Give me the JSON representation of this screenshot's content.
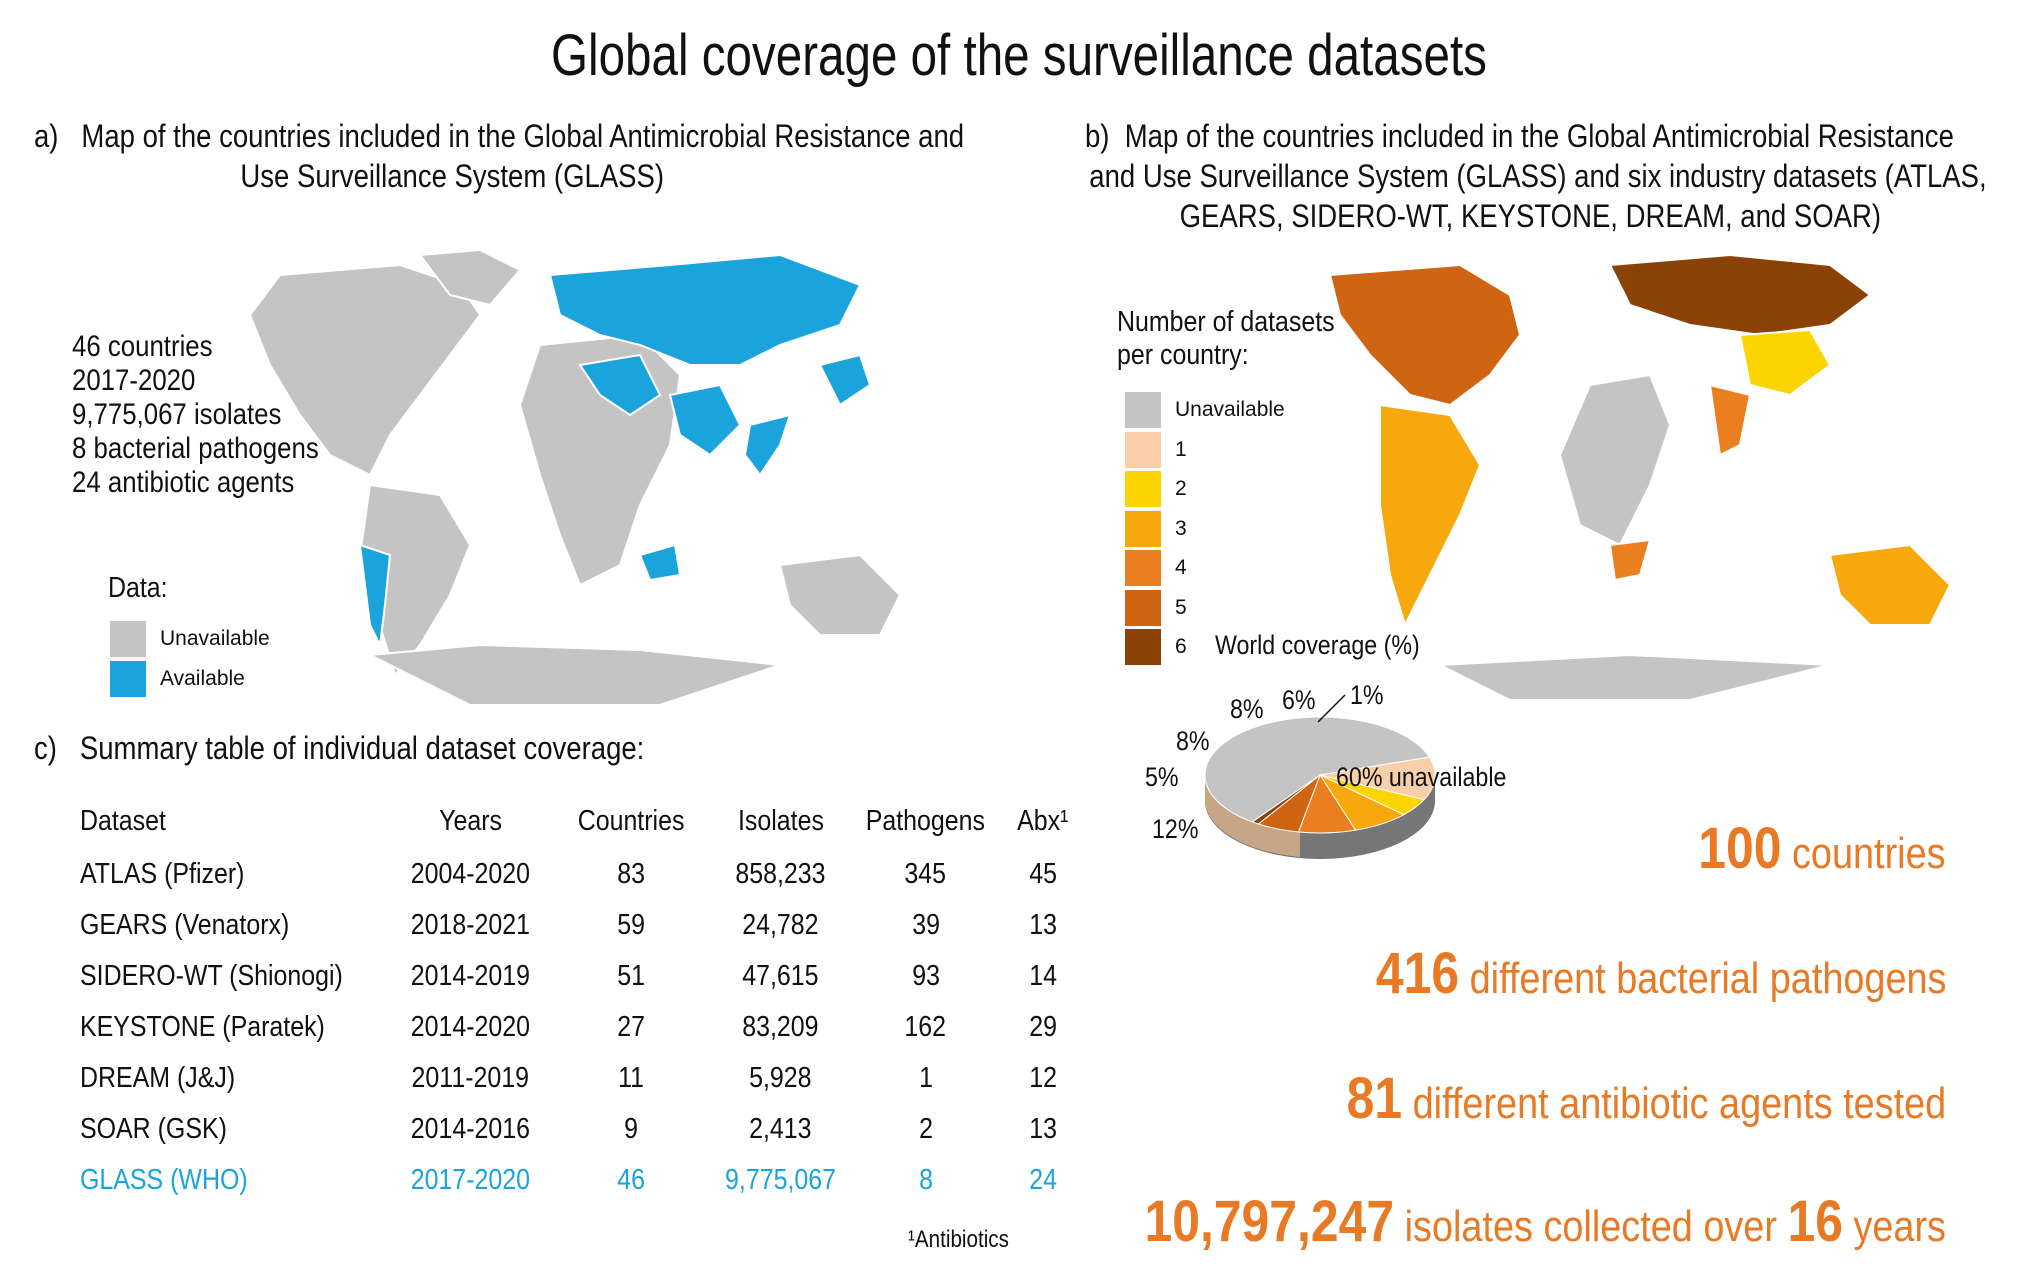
{
  "title": "Global coverage of the surveillance datasets",
  "panel_a": {
    "label": "a)",
    "title_line1": "Map of the countries included in the Global Antimicrobial Resistance and",
    "title_line2": "Use Surveillance System (GLASS)",
    "stats": [
      "46 countries",
      "2017-2020",
      "9,775,067 isolates",
      "8 bacterial pathogens",
      "24 antibiotic agents"
    ],
    "legend_title": "Data:",
    "legend": [
      {
        "label": "Unavailable",
        "color": "#c4c4c4"
      },
      {
        "label": "Available",
        "color": "#1ba3dc"
      }
    ]
  },
  "panel_b": {
    "label": "b)",
    "title_line1": "Map of the countries included in the Global Antimicrobial Resistance",
    "title_line2": "and Use Surveillance System (GLASS) and six industry datasets (ATLAS,",
    "title_line3": "GEARS, SIDERO-WT, KEYSTONE, DREAM, and SOAR)",
    "legend_title_line1": "Number of datasets",
    "legend_title_line2": "per country:",
    "legend": [
      {
        "label": "Unavailable",
        "color": "#c4c4c4"
      },
      {
        "label": "1",
        "color": "#f8cfa9"
      },
      {
        "label": "2",
        "color": "#fcd400"
      },
      {
        "label": "3",
        "color": "#f6a80d"
      },
      {
        "label": "4",
        "color": "#eb7e1e"
      },
      {
        "label": "5",
        "color": "#cf6412"
      },
      {
        "label": "6",
        "color": "#8a4206"
      }
    ],
    "pie_title": "World coverage (%)"
  },
  "panel_c": {
    "label": "c)",
    "title": "Summary table of individual dataset coverage:",
    "headers": [
      "Dataset",
      "Years",
      "Countries",
      "Isolates",
      "Pathogens",
      "Abx¹"
    ],
    "rows": [
      [
        "ATLAS (Pfizer)",
        "2004-2020",
        "83",
        "858,233",
        "345",
        "45"
      ],
      [
        "GEARS (Venatorx)",
        "2018-2021",
        "59",
        "24,782",
        "39",
        "13"
      ],
      [
        "SIDERO-WT (Shionogi)",
        "2014-2019",
        "51",
        "47,615",
        "93",
        "14"
      ],
      [
        "KEYSTONE (Paratek)",
        "2014-2020",
        "27",
        "83,209",
        "162",
        "29"
      ],
      [
        "DREAM (J&J)",
        "2011-2019",
        "11",
        "5,928",
        "1",
        "12"
      ],
      [
        "SOAR (GSK)",
        "2014-2016",
        "9",
        "2,413",
        "2",
        "13"
      ],
      [
        "GLASS (WHO)",
        "2017-2020",
        "46",
        "9,775,067",
        "8",
        "24"
      ]
    ],
    "footnote": "¹Antibiotics"
  },
  "summary": {
    "countries_num": "100",
    "countries_text": " countries",
    "pathogens_num": "416",
    "pathogens_text": " different bacterial pathogens",
    "agents_num": "81",
    "agents_text": " different antibiotic agents tested",
    "isolates_num": "10,797,247",
    "isolates_text": " isolates collected over ",
    "years_num": "16",
    "years_text": " years"
  },
  "chart_data": [
    {
      "type": "pie",
      "title": "World coverage (%)",
      "slices": [
        {
          "label": "60% unavailable",
          "value": 60,
          "color": "#c4c4c4"
        },
        {
          "label": "12%",
          "value": 12,
          "color": "#f8cfa9"
        },
        {
          "label": "5%",
          "value": 5,
          "color": "#fcd400"
        },
        {
          "label": "8%",
          "value": 8,
          "color": "#f6a80d"
        },
        {
          "label": "8%",
          "value": 8,
          "color": "#eb7e1e"
        },
        {
          "label": "6%",
          "value": 6,
          "color": "#cf6412"
        },
        {
          "label": "1%",
          "value": 1,
          "color": "#8a4206"
        }
      ]
    }
  ]
}
